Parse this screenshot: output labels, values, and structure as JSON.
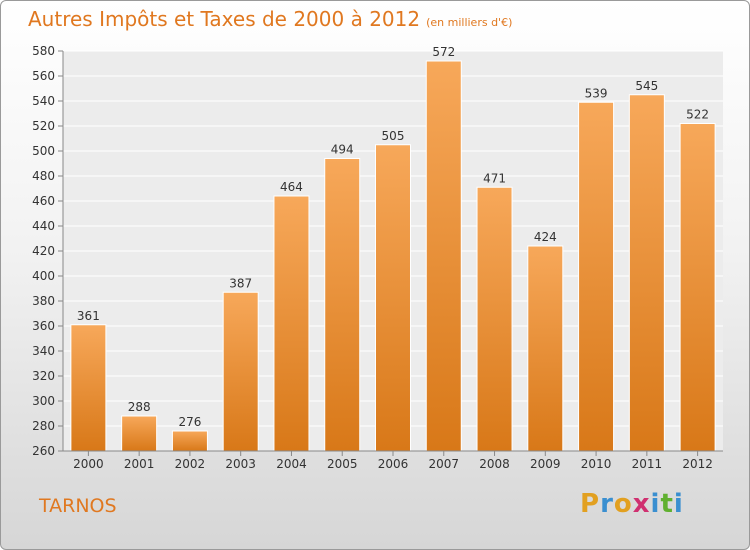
{
  "title": "Autres Impôts et Taxes de 2000 à 2012",
  "subtitle": "(en milliers d'€)",
  "city": "TARNOS",
  "logo": {
    "letters": [
      "P",
      "r",
      "o",
      "x",
      "i",
      "t",
      "i"
    ],
    "colors": [
      "#e2a020",
      "#3a8fd0",
      "#e2a020",
      "#d03070",
      "#3a8fd0",
      "#60b030",
      "#3a8fd0"
    ]
  },
  "colors": {
    "bar_top": "#f7a85a",
    "bar_bottom": "#d87818",
    "accent": "#e07820"
  },
  "chart_data": {
    "type": "bar",
    "categories": [
      "2000",
      "2001",
      "2002",
      "2003",
      "2004",
      "2005",
      "2006",
      "2007",
      "2008",
      "2009",
      "2010",
      "2011",
      "2012"
    ],
    "values": [
      361,
      288,
      276,
      387,
      464,
      494,
      505,
      572,
      471,
      424,
      539,
      545,
      522
    ],
    "title": "Autres Impôts et Taxes de 2000 à 2012",
    "subtitle": "(en milliers d'€)",
    "ylim": [
      260,
      580
    ],
    "yticks": [
      260,
      280,
      300,
      320,
      340,
      360,
      380,
      400,
      420,
      440,
      460,
      480,
      500,
      520,
      540,
      560,
      580
    ],
    "grid": true,
    "data_labels": true
  }
}
